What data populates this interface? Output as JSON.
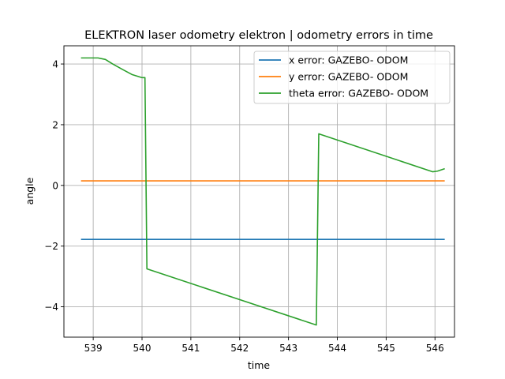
{
  "chart_data": {
    "type": "line",
    "title": "ELEKTRON laser odometry elektron | odometry errors in time",
    "xlabel": "time",
    "ylabel": "angle",
    "xlim": [
      538.4,
      546.4
    ],
    "ylim": [
      -5.0,
      4.6
    ],
    "xticks": [
      539,
      540,
      541,
      542,
      543,
      544,
      545,
      546
    ],
    "yticks": [
      -4,
      -2,
      0,
      2,
      4
    ],
    "ytick_labels": [
      "−4",
      "−2",
      "0",
      "2",
      "4"
    ],
    "grid": true,
    "legend_position": "top-right",
    "series": [
      {
        "name": "x error: GAZEBO- ODOM",
        "color": "#1f77b4",
        "x": [
          538.75,
          546.2
        ],
        "y": [
          -1.78,
          -1.78
        ]
      },
      {
        "name": "y error: GAZEBO- ODOM",
        "color": "#ff7f0e",
        "x": [
          538.75,
          546.2
        ],
        "y": [
          0.15,
          0.15
        ]
      },
      {
        "name": "theta error: GAZEBO- ODOM",
        "color": "#2ca02c",
        "x": [
          538.75,
          539.1,
          539.25,
          539.4,
          539.6,
          539.8,
          540.0,
          540.06,
          540.1,
          543.57,
          543.62,
          545.95,
          546.05,
          546.2
        ],
        "y": [
          4.2,
          4.2,
          4.15,
          4.0,
          3.82,
          3.65,
          3.55,
          3.55,
          -2.75,
          -4.6,
          1.7,
          0.45,
          0.47,
          0.55
        ]
      }
    ]
  }
}
